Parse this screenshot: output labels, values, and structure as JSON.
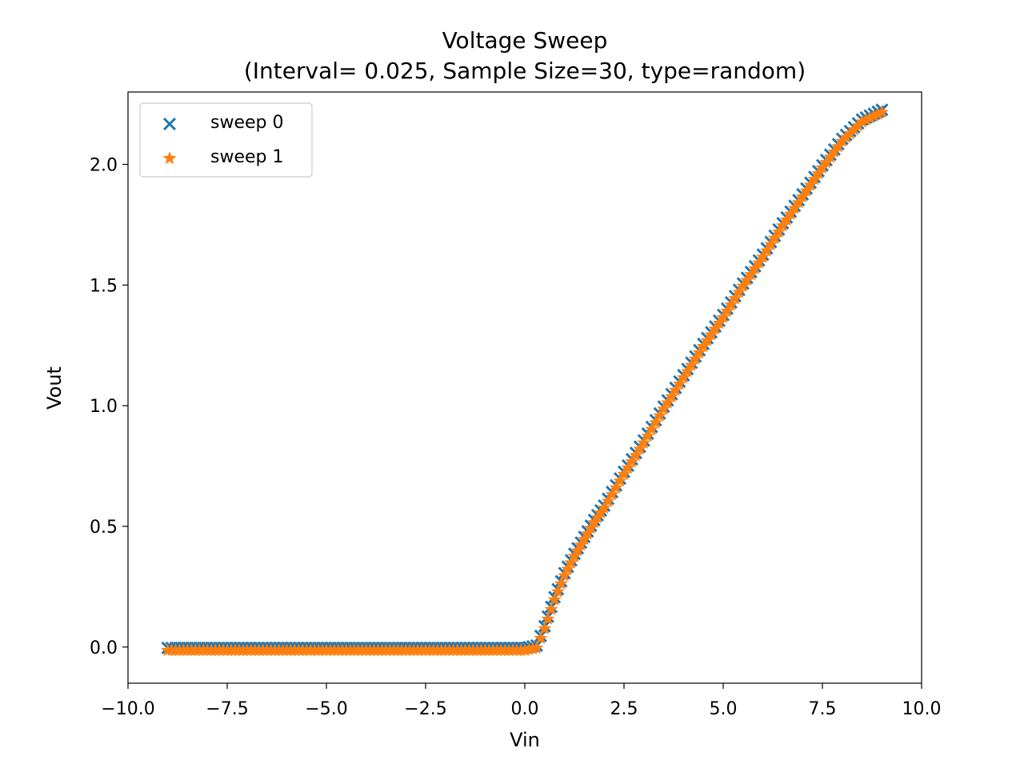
{
  "chart_data": {
    "type": "scatter",
    "title": "Voltage Sweep",
    "subtitle": "(Interval= 0.025, Sample Size=30, type=random)",
    "xlabel": "Vin",
    "ylabel": "Vout",
    "xlim": [
      -10.0,
      10.0
    ],
    "ylim": [
      -0.15,
      2.3
    ],
    "xticks": [
      -10.0,
      -7.5,
      -5.0,
      -2.5,
      0.0,
      2.5,
      5.0,
      7.5,
      10.0
    ],
    "xtick_labels": [
      "−10.0",
      "−7.5",
      "−5.0",
      "−2.5",
      "0.0",
      "2.5",
      "5.0",
      "7.5",
      "10.0"
    ],
    "yticks": [
      0.0,
      0.5,
      1.0,
      1.5,
      2.0
    ],
    "ytick_labels": [
      "0.0",
      "0.5",
      "1.0",
      "1.5",
      "2.0"
    ],
    "grid": false,
    "legend_position": "top-left",
    "series": [
      {
        "name": "sweep 0",
        "marker": "x",
        "color": "#1f77b4",
        "x": [
          -9.0,
          -8.5,
          -8.0,
          -7.5,
          -7.0,
          -6.5,
          -6.0,
          -5.5,
          -5.0,
          -4.5,
          -4.0,
          -3.5,
          -3.0,
          -2.5,
          -2.0,
          -1.5,
          -1.0,
          -0.5,
          0.0,
          0.3,
          0.5,
          0.75,
          1.0,
          1.25,
          1.5,
          1.75,
          2.0,
          2.5,
          3.0,
          3.5,
          4.0,
          4.5,
          5.0,
          5.5,
          6.0,
          6.5,
          7.0,
          7.5,
          8.0,
          8.5,
          9.0
        ],
        "y": [
          -0.01,
          -0.01,
          -0.01,
          -0.01,
          -0.01,
          -0.01,
          -0.01,
          -0.01,
          -0.01,
          -0.01,
          -0.01,
          -0.01,
          -0.01,
          -0.01,
          -0.01,
          -0.01,
          -0.01,
          -0.01,
          -0.01,
          0.0,
          0.08,
          0.2,
          0.3,
          0.38,
          0.45,
          0.52,
          0.58,
          0.72,
          0.85,
          0.99,
          1.12,
          1.25,
          1.37,
          1.5,
          1.62,
          1.75,
          1.87,
          1.99,
          2.1,
          2.18,
          2.22
        ]
      },
      {
        "name": "sweep 1",
        "marker": "*",
        "color": "#ff7f0e",
        "x": [
          -9.0,
          -8.5,
          -8.0,
          -7.5,
          -7.0,
          -6.5,
          -6.0,
          -5.5,
          -5.0,
          -4.5,
          -4.0,
          -3.5,
          -3.0,
          -2.5,
          -2.0,
          -1.5,
          -1.0,
          -0.5,
          0.0,
          0.3,
          0.5,
          0.75,
          1.0,
          1.25,
          1.5,
          1.75,
          2.0,
          2.5,
          3.0,
          3.5,
          4.0,
          4.5,
          5.0,
          5.5,
          6.0,
          6.5,
          7.0,
          7.5,
          8.0,
          8.5,
          9.0
        ],
        "y": [
          -0.01,
          -0.01,
          -0.01,
          -0.01,
          -0.01,
          -0.01,
          -0.01,
          -0.01,
          -0.01,
          -0.01,
          -0.01,
          -0.01,
          -0.01,
          -0.01,
          -0.01,
          -0.01,
          -0.01,
          -0.01,
          -0.01,
          0.0,
          0.08,
          0.2,
          0.3,
          0.38,
          0.45,
          0.52,
          0.58,
          0.72,
          0.85,
          0.99,
          1.12,
          1.25,
          1.37,
          1.5,
          1.62,
          1.75,
          1.87,
          1.99,
          2.1,
          2.18,
          2.22
        ]
      }
    ]
  }
}
